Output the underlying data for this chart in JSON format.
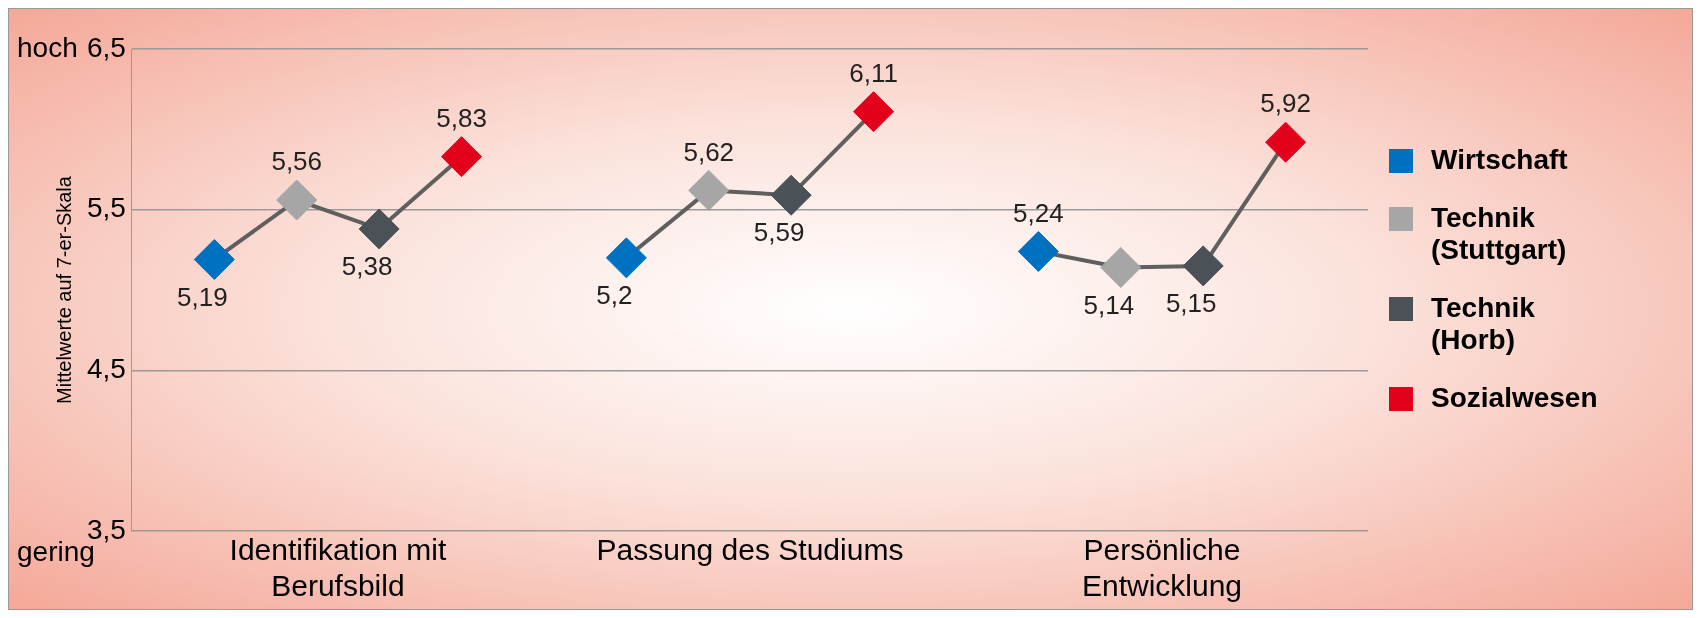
{
  "chart_data": {
    "type": "scatter",
    "ylabel": "Mittelwerte auf 7-er-Skala",
    "categories": [
      "Identifikation mit Berufsbild",
      "Passung des Studiums",
      "Persönliche Entwicklung"
    ],
    "series": [
      {
        "name": "Wirtschaft",
        "color": "#0070c0",
        "values": [
          5.19,
          5.2,
          5.24
        ],
        "value_labels": [
          "5,19",
          "5,2",
          "5,24"
        ]
      },
      {
        "name": "Technik (Stuttgart)",
        "color": "#a6a6a6",
        "values": [
          5.56,
          5.62,
          5.14
        ],
        "value_labels": [
          "5,56",
          "5,62",
          "5,14"
        ]
      },
      {
        "name": "Technik (Horb)",
        "color": "#4a5157",
        "values": [
          5.38,
          5.59,
          5.15
        ],
        "value_labels": [
          "5,38",
          "5,59",
          "5,15"
        ]
      },
      {
        "name": "Sozialwesen",
        "color": "#e3001b",
        "values": [
          5.83,
          6.11,
          5.92
        ],
        "value_labels": [
          "5,83",
          "6,11",
          "5,92"
        ]
      }
    ],
    "ylim": [
      3.5,
      6.5
    ],
    "yticks": [
      {
        "value": 3.5,
        "label": "3,5"
      },
      {
        "value": 4.5,
        "label": "4,5"
      },
      {
        "value": 5.5,
        "label": "5,5"
      },
      {
        "value": 6.5,
        "label": "6,5"
      }
    ],
    "grid": "y",
    "legend": "right",
    "marker": "diamond",
    "annotations": [
      "hoch",
      "gering"
    ]
  }
}
